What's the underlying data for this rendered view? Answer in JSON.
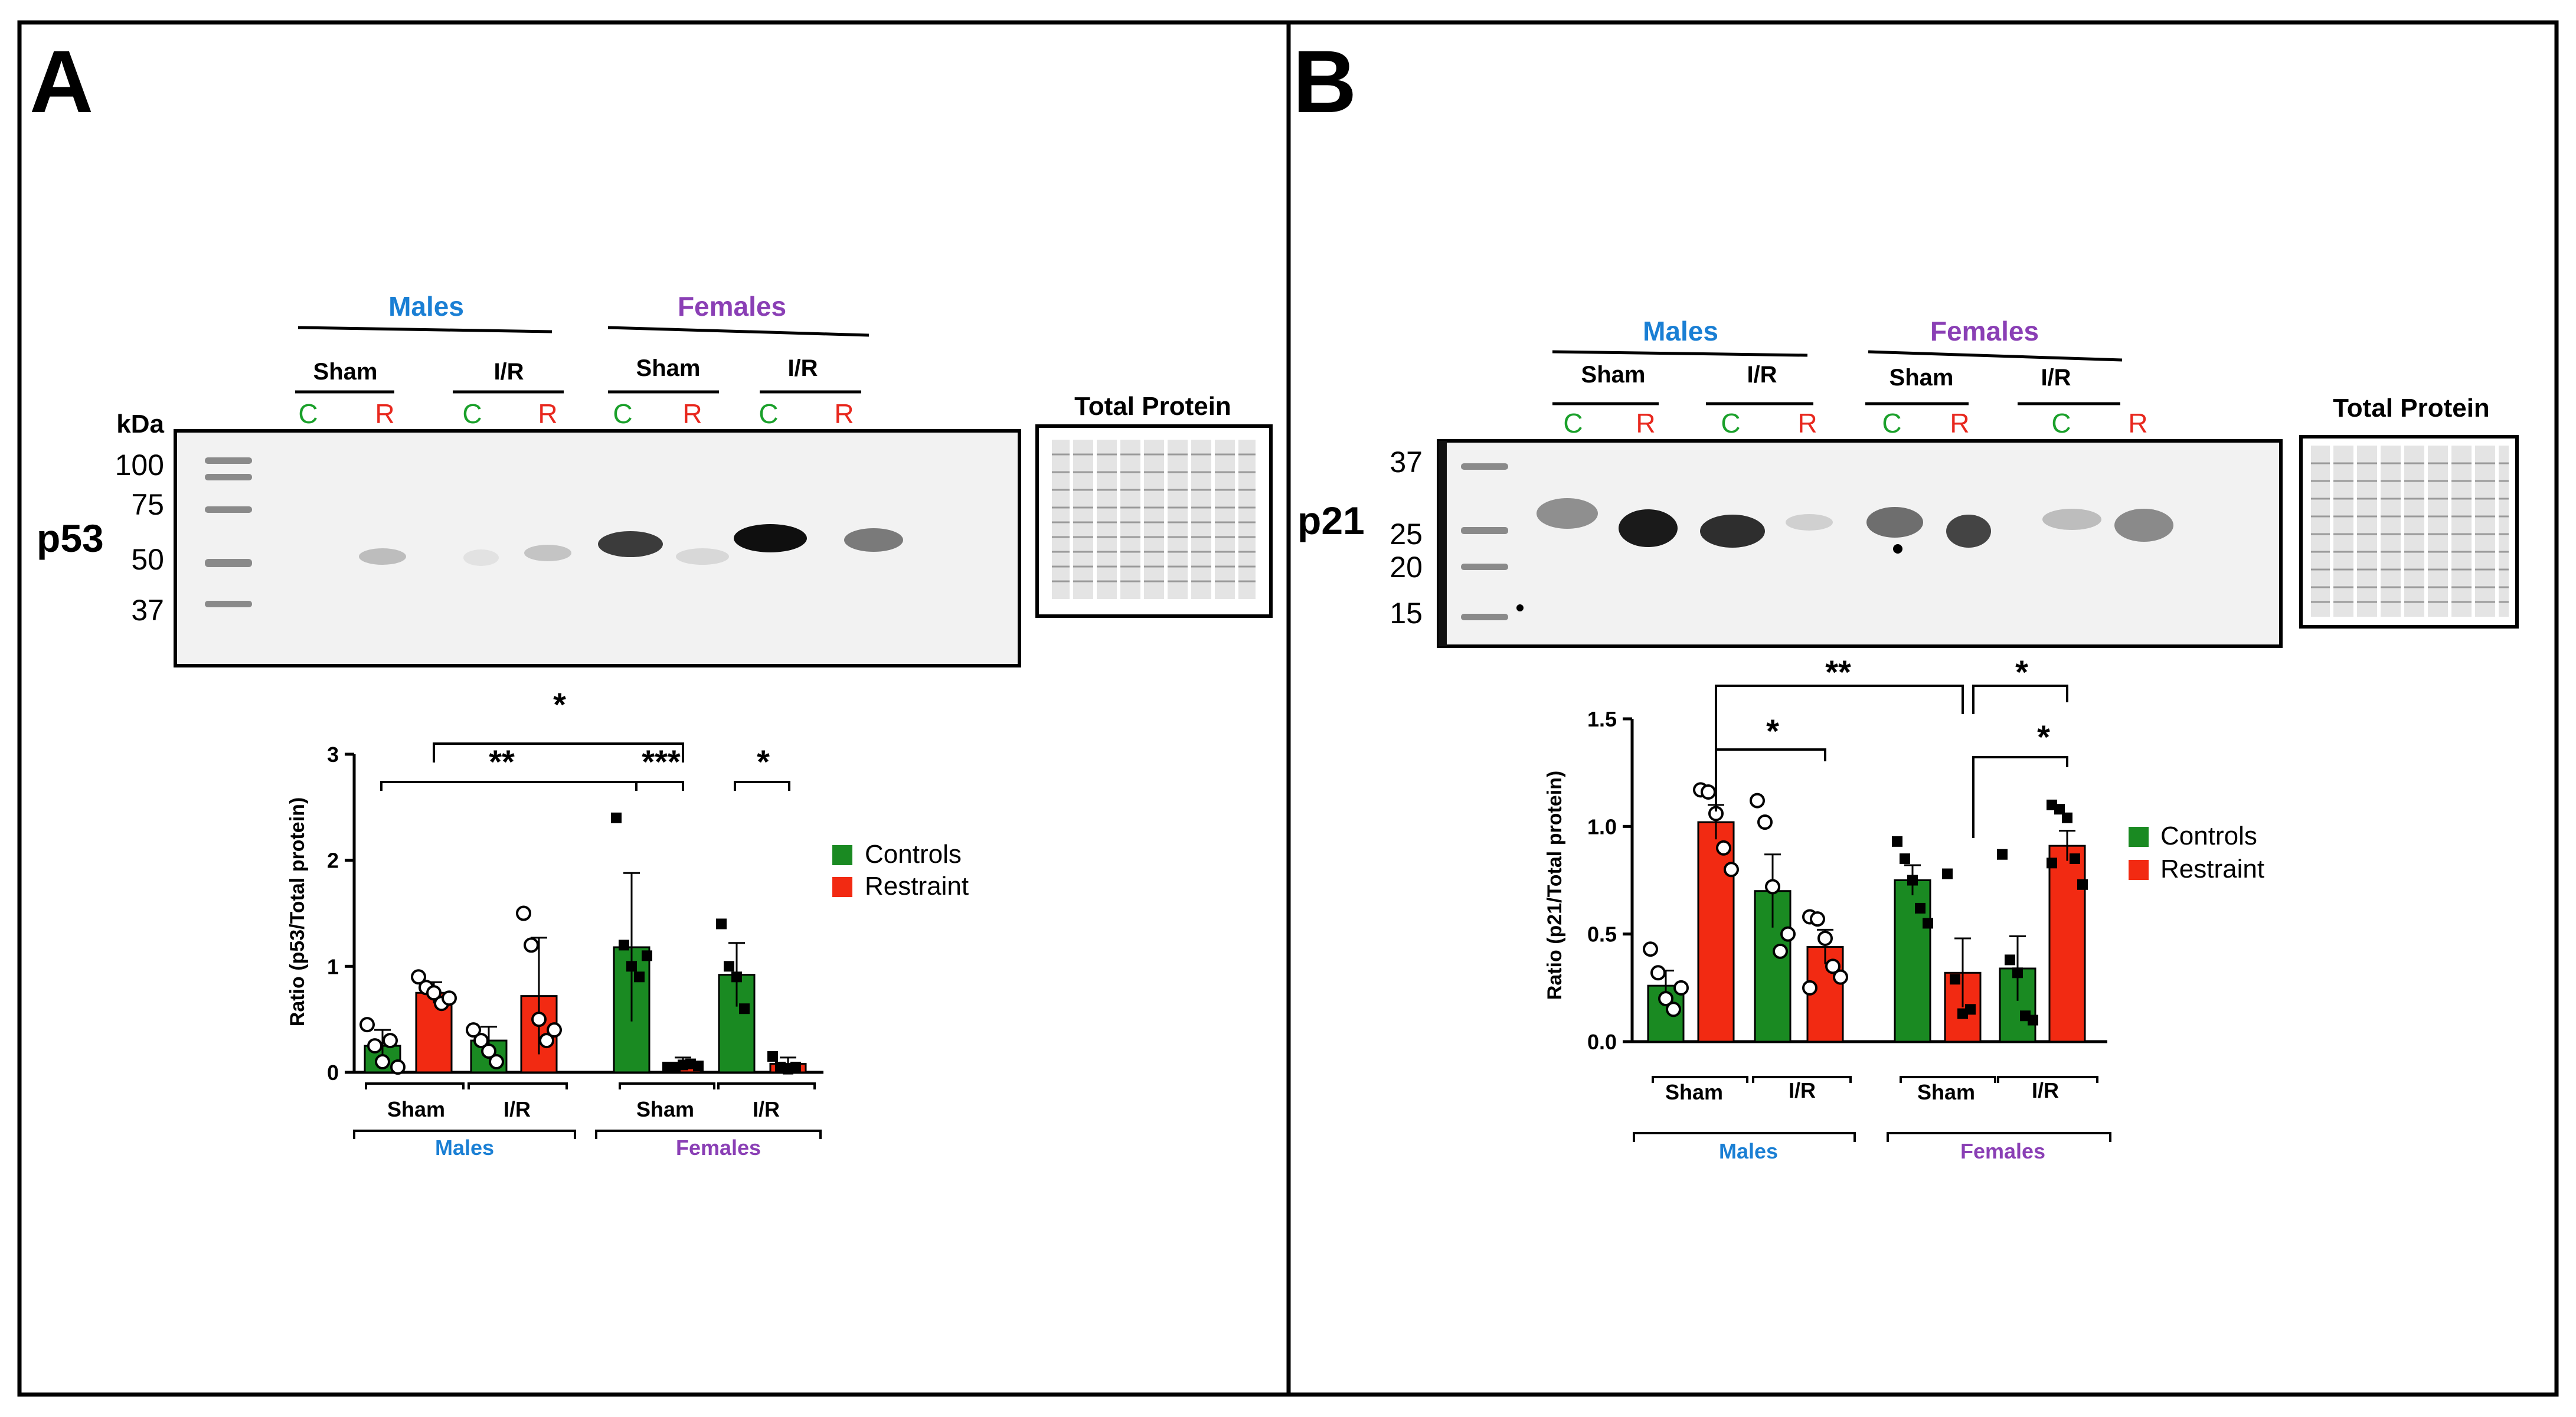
{
  "panels": {
    "A": {
      "letter": "A",
      "blot": {
        "protein_label": "p53",
        "kda_label": "kDa",
        "ladder": [
          "100",
          "75",
          "50",
          "37"
        ],
        "males_label": "Males",
        "females_label": "Females",
        "males_groups": [
          "Sham",
          "I/R"
        ],
        "females_groups": [
          "Sham",
          "I/R"
        ],
        "lanes": [
          "C",
          "R",
          "C",
          "R",
          "C",
          "R",
          "C",
          "R"
        ],
        "total_protein_label": "Total Protein"
      },
      "sig": [
        "*",
        "**",
        "***",
        "*"
      ],
      "groups": {
        "sham1": "Sham",
        "ir1": "I/R",
        "sham2": "Sham",
        "ir2": "I/R",
        "males": "Males",
        "females": "Females"
      }
    },
    "B": {
      "letter": "B",
      "blot": {
        "protein_label": "p21",
        "ladder": [
          "37",
          "25",
          "20",
          "15"
        ],
        "males_label": "Males",
        "females_label": "Females",
        "males_groups": [
          "Sham",
          "I/R"
        ],
        "females_groups": [
          "Sham",
          "I/R"
        ],
        "lanes": [
          "C",
          "R",
          "C",
          "R",
          "C",
          "R",
          "C",
          "R"
        ],
        "total_protein_label": "Total Protein"
      },
      "sig": [
        "**",
        "*",
        "*",
        "*"
      ],
      "groups": {
        "sham1": "Sham",
        "ir1": "I/R",
        "sham2": "Sham",
        "ir2": "I/R",
        "males": "Males",
        "females": "Females"
      }
    }
  },
  "colors": {
    "controls": "#1a8a22",
    "restraint": "#f22a12",
    "males_text": "#1a7fd4",
    "females_text": "#8a3fb5",
    "lane_c": "#1aa02a",
    "lane_r": "#e8281e"
  },
  "chart_data": [
    {
      "type": "bar",
      "ylabel": "Ratio (p53/Total protein)",
      "ylim": [
        0,
        3
      ],
      "yticks": [
        "0",
        "1",
        "2",
        "3"
      ],
      "categories": [
        "Males Sham",
        "Males I/R",
        "Females Sham",
        "Females I/R"
      ],
      "series": [
        {
          "name": "Controls",
          "values": [
            0.25,
            0.3,
            1.18,
            0.92
          ],
          "errors": [
            0.15,
            0.13,
            0.7,
            0.3
          ]
        },
        {
          "name": "Restraint",
          "values": [
            0.75,
            0.72,
            0.08,
            0.08
          ],
          "errors": [
            0.1,
            0.55,
            0.06,
            0.06
          ]
        }
      ],
      "points": {
        "Controls": [
          [
            0.45,
            0.25,
            0.1,
            0.3,
            0.05
          ],
          [
            0.4,
            0.3,
            0.2,
            0.1
          ],
          [
            2.4,
            1.2,
            1.0,
            0.9,
            1.1
          ],
          [
            1.4,
            1.0,
            0.9,
            0.6
          ]
        ],
        "Restraint": [
          [
            0.9,
            0.8,
            0.75,
            0.65,
            0.7
          ],
          [
            1.5,
            1.2,
            0.5,
            0.3,
            0.4
          ],
          [
            0.05,
            0.05,
            0.07,
            0.08,
            0.06
          ],
          [
            0.15,
            0.05,
            0.03,
            0.05
          ]
        ]
      },
      "legend": [
        "Controls",
        "Restraint"
      ],
      "legend_position": "right"
    },
    {
      "type": "bar",
      "ylabel": "Ratio (p21/Total protein)",
      "ylim": [
        0,
        1.5
      ],
      "yticks": [
        "0.0",
        "0.5",
        "1.0",
        "1.5"
      ],
      "categories": [
        "Males Sham",
        "Males I/R",
        "Females Sham",
        "Females I/R"
      ],
      "series": [
        {
          "name": "Controls",
          "values": [
            0.26,
            0.7,
            0.75,
            0.34
          ],
          "errors": [
            0.07,
            0.17,
            0.07,
            0.15
          ]
        },
        {
          "name": "Restraint",
          "values": [
            1.02,
            0.44,
            0.32,
            0.91
          ],
          "errors": [
            0.08,
            0.08,
            0.16,
            0.07
          ]
        }
      ],
      "points": {
        "Controls": [
          [
            0.43,
            0.32,
            0.2,
            0.15,
            0.25
          ],
          [
            1.12,
            1.02,
            0.72,
            0.42,
            0.5
          ],
          [
            0.93,
            0.85,
            0.75,
            0.62,
            0.55
          ],
          [
            0.87,
            0.38,
            0.32,
            0.12,
            0.1
          ]
        ],
        "Restraint": [
          [
            1.17,
            1.16,
            1.06,
            0.9,
            0.8
          ],
          [
            0.58,
            0.57,
            0.48,
            0.35,
            0.3,
            0.25
          ],
          [
            0.78,
            0.29,
            0.13,
            0.15
          ],
          [
            1.1,
            1.08,
            1.04,
            0.85,
            0.73,
            0.83
          ]
        ]
      },
      "legend": [
        "Controls",
        "Restraint"
      ],
      "legend_position": "right"
    }
  ]
}
